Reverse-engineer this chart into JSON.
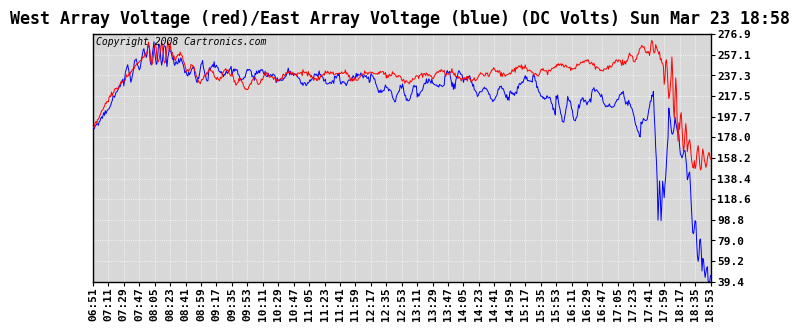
{
  "title": "West Array Voltage (red)/East Array Voltage (blue) (DC Volts) Sun Mar 23 18:58",
  "copyright": "Copyright 2008 Cartronics.com",
  "yticks": [
    276.9,
    257.1,
    237.3,
    217.5,
    197.7,
    178.0,
    158.2,
    138.4,
    118.6,
    98.8,
    79.0,
    59.2,
    39.4
  ],
  "xtick_labels": [
    "06:51",
    "07:11",
    "07:29",
    "07:47",
    "08:05",
    "08:23",
    "08:41",
    "08:59",
    "09:17",
    "09:35",
    "09:53",
    "10:11",
    "10:29",
    "10:47",
    "11:05",
    "11:23",
    "11:41",
    "11:59",
    "12:17",
    "12:35",
    "12:53",
    "13:11",
    "13:29",
    "13:47",
    "14:05",
    "14:23",
    "14:41",
    "14:59",
    "15:17",
    "15:35",
    "15:53",
    "16:11",
    "16:29",
    "16:47",
    "17:05",
    "17:23",
    "17:41",
    "17:59",
    "18:17",
    "18:35",
    "18:53"
  ],
  "ymin": 39.4,
  "ymax": 276.9,
  "bg_color": "#ffffff",
  "plot_bg": "#d8d8d8",
  "grid_color": "#ffffff",
  "line_red": "#ff0000",
  "line_blue": "#0000ff",
  "title_fontsize": 12,
  "copyright_fontsize": 7,
  "tick_fontsize": 8
}
